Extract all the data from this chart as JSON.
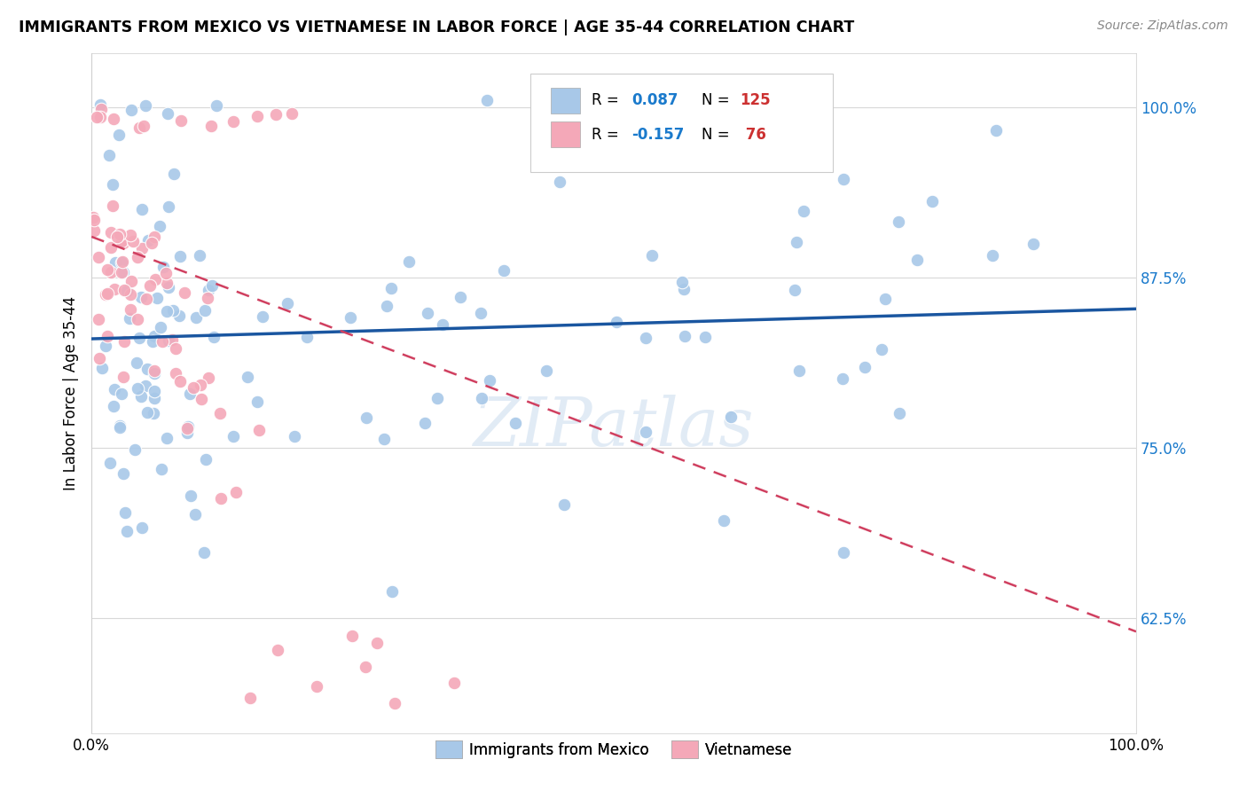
{
  "title": "IMMIGRANTS FROM MEXICO VS VIETNAMESE IN LABOR FORCE | AGE 35-44 CORRELATION CHART",
  "source": "Source: ZipAtlas.com",
  "ylabel": "In Labor Force | Age 35-44",
  "xlim": [
    0.0,
    1.0
  ],
  "ylim": [
    0.54,
    1.04
  ],
  "mexico_R": 0.087,
  "mexico_N": 125,
  "vietnamese_R": -0.157,
  "vietnamese_N": 76,
  "mexico_color": "#a8c8e8",
  "mexican_line_color": "#1a56a0",
  "vietnamese_color": "#f4a8b8",
  "vietnamese_line_color": "#d04060",
  "R_color": "#1a7acc",
  "N_color": "#cc3030",
  "watermark": "ZIPatlas",
  "grid_color": "#d8d8d8",
  "ytick_vals": [
    0.625,
    0.75,
    0.875,
    1.0
  ],
  "ytick_labels": [
    "62.5%",
    "75.0%",
    "87.5%",
    "100.0%"
  ],
  "mexico_line_start_y": 0.83,
  "mexico_line_end_y": 0.852,
  "viet_line_start_y": 0.905,
  "viet_line_end_y": 0.615
}
